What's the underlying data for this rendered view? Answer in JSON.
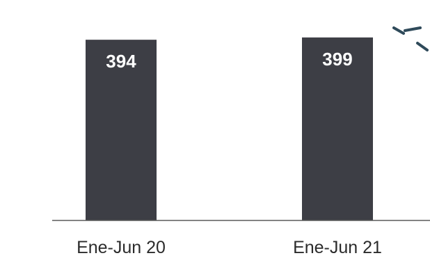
{
  "chart_data": {
    "type": "bar",
    "categories": [
      "Ene-Jun 20",
      "Ene-Jun 21"
    ],
    "values": [
      394,
      399
    ],
    "data_labels": [
      "394",
      "399"
    ],
    "title": "",
    "xlabel": "",
    "ylabel": "",
    "ylim": [
      0,
      420
    ],
    "grid": false,
    "legend": "none",
    "colors": {
      "bar": "#3d3e45",
      "axis": "#5a5a5a",
      "data_label": "#ffffff",
      "tick_label": "#2b2b2b",
      "accent_mark": "#2f4a5a"
    }
  }
}
